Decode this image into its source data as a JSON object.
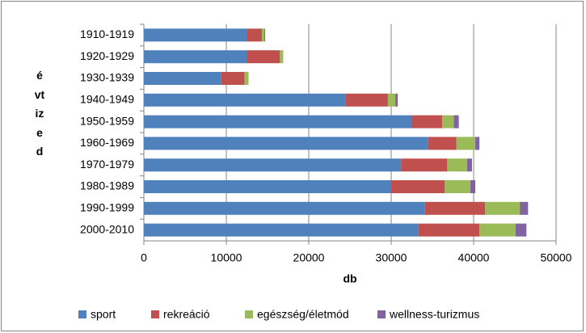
{
  "chart_data": {
    "type": "stacked-bar-horizontal",
    "categories": [
      "1910-1919",
      "1920-1929",
      "1930-1939",
      "1940-1949",
      "1950-1959",
      "1960-1969",
      "1970-1979",
      "1980-1989",
      "1990-1999",
      "2000-2010"
    ],
    "series": [
      {
        "name": "sport",
        "color": "#4f81bd",
        "values": [
          12550,
          12500,
          9400,
          24500,
          32500,
          34500,
          31200,
          30000,
          34100,
          33300
        ]
      },
      {
        "name": "rekreáció",
        "color": "#c0504d",
        "values": [
          1760,
          4000,
          2800,
          5100,
          3700,
          3400,
          5600,
          6500,
          7300,
          7400
        ]
      },
      {
        "name": "egészség/életmód",
        "color": "#9bbb59",
        "values": [
          300,
          400,
          500,
          900,
          1400,
          2300,
          2400,
          3100,
          4200,
          4400
        ]
      },
      {
        "name": "wellness-turizmus",
        "color": "#8064a2",
        "values": [
          100,
          0,
          0,
          300,
          600,
          500,
          600,
          600,
          1000,
          1300
        ]
      }
    ],
    "xlim": [
      0,
      50000
    ],
    "xticks": [
      0,
      10000,
      20000,
      30000,
      40000,
      50000
    ],
    "x_label": "db",
    "y_label": "évtized",
    "grid": true,
    "legend": "bottom"
  }
}
